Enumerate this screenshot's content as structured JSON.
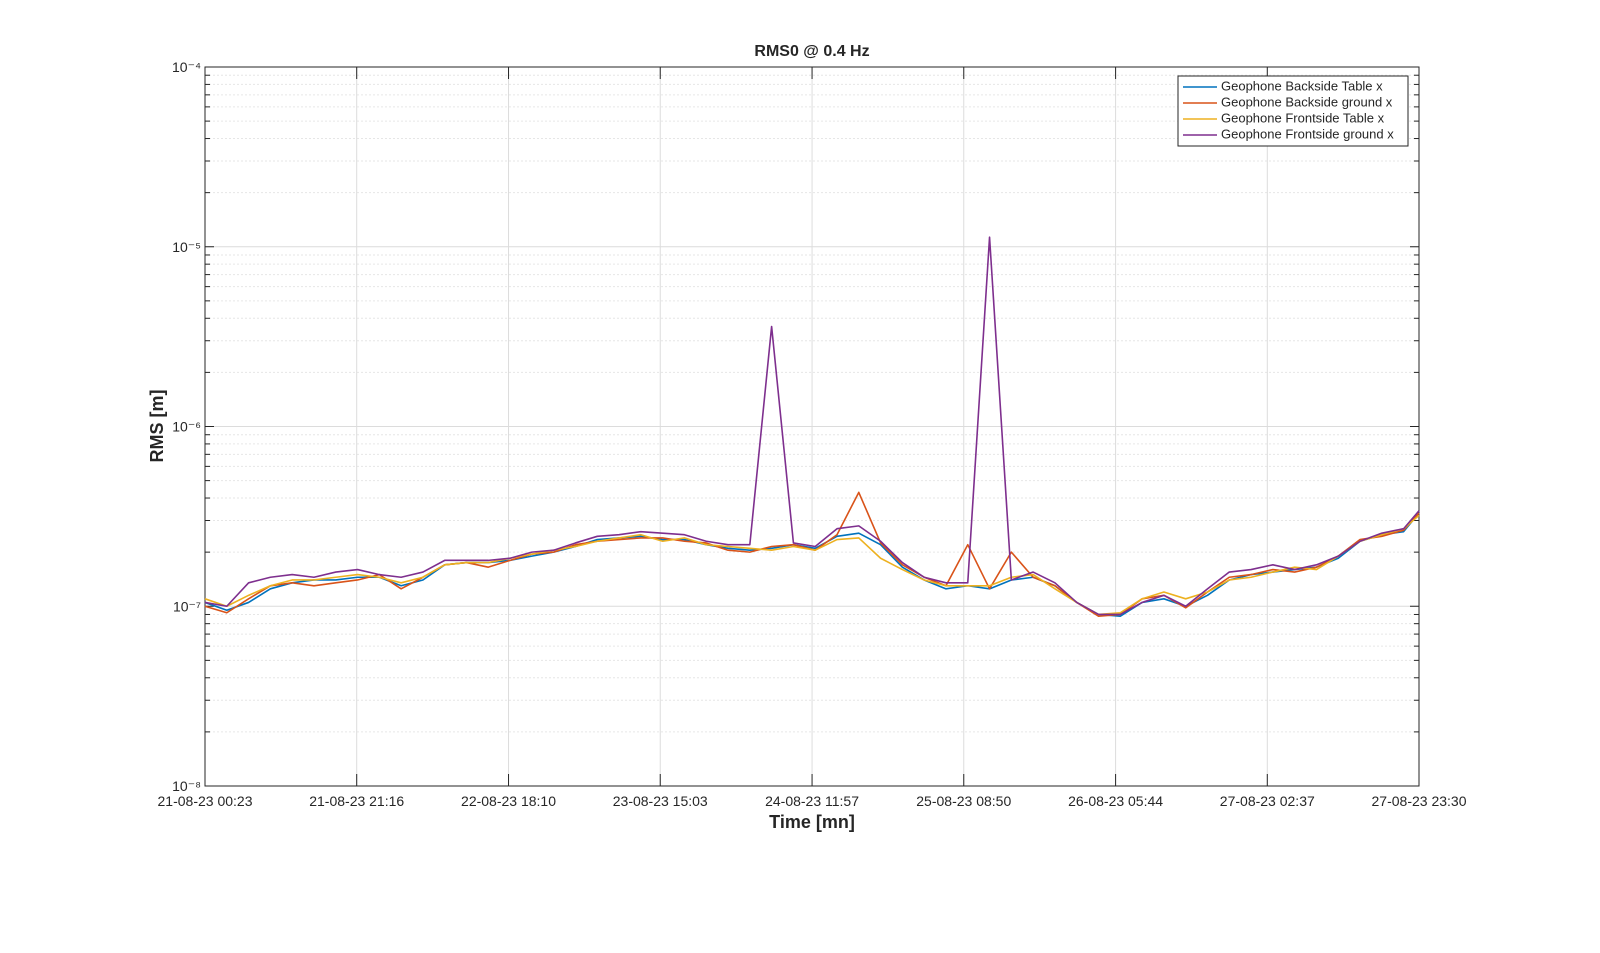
{
  "chart_data": {
    "type": "line",
    "title": "RMS0 @ 0.4 Hz",
    "xlabel": "Time [mn]",
    "ylabel": "RMS [m]",
    "log_y": true,
    "grid": true,
    "minor_grid": true,
    "legend_position": "upper-right",
    "xlim": [
      "2023-08-21T00:23",
      "2023-08-27T23:30"
    ],
    "xticks": [
      {
        "value": "2023-08-21T00:23",
        "label": "21-08-23 00:23"
      },
      {
        "value": "2023-08-21T21:16",
        "label": "21-08-23 21:16"
      },
      {
        "value": "2023-08-22T18:10",
        "label": "22-08-23 18:10"
      },
      {
        "value": "2023-08-23T15:03",
        "label": "23-08-23 15:03"
      },
      {
        "value": "2023-08-24T11:57",
        "label": "24-08-23 11:57"
      },
      {
        "value": "2023-08-25T08:50",
        "label": "25-08-23 08:50"
      },
      {
        "value": "2023-08-26T05:44",
        "label": "26-08-23 05:44"
      },
      {
        "value": "2023-08-27T02:37",
        "label": "27-08-23 02:37"
      },
      {
        "value": "2023-08-27T23:30",
        "label": "27-08-23 23:30"
      }
    ],
    "ylim": [
      1e-08,
      0.0001
    ],
    "yticks": [
      {
        "value": 1e-08,
        "label": "10⁻⁸"
      },
      {
        "value": 1e-07,
        "label": "10⁻⁷"
      },
      {
        "value": 1e-06,
        "label": "10⁻⁶"
      },
      {
        "value": 1e-05,
        "label": "10⁻⁵"
      },
      {
        "value": 0.0001,
        "label": "10⁻⁴"
      }
    ],
    "x": [
      "2023-08-21T00:23",
      "2023-08-21T03:23",
      "2023-08-21T06:23",
      "2023-08-21T09:23",
      "2023-08-21T12:23",
      "2023-08-21T15:23",
      "2023-08-21T18:23",
      "2023-08-21T21:23",
      "2023-08-22T00:23",
      "2023-08-22T03:23",
      "2023-08-22T06:23",
      "2023-08-22T09:23",
      "2023-08-22T12:23",
      "2023-08-22T15:23",
      "2023-08-22T18:23",
      "2023-08-22T21:23",
      "2023-08-23T00:23",
      "2023-08-23T03:23",
      "2023-08-23T06:23",
      "2023-08-23T09:23",
      "2023-08-23T12:23",
      "2023-08-23T15:23",
      "2023-08-23T18:23",
      "2023-08-23T21:23",
      "2023-08-24T00:23",
      "2023-08-24T03:23",
      "2023-08-24T06:23",
      "2023-08-24T09:23",
      "2023-08-24T12:23",
      "2023-08-24T15:23",
      "2023-08-24T18:23",
      "2023-08-24T21:23",
      "2023-08-25T00:23",
      "2023-08-25T03:23",
      "2023-08-25T06:23",
      "2023-08-25T09:23",
      "2023-08-25T12:23",
      "2023-08-25T15:23",
      "2023-08-25T18:23",
      "2023-08-25T21:23",
      "2023-08-26T00:23",
      "2023-08-26T03:23",
      "2023-08-26T06:23",
      "2023-08-26T09:23",
      "2023-08-26T12:23",
      "2023-08-26T15:23",
      "2023-08-26T18:23",
      "2023-08-26T21:23",
      "2023-08-27T00:23",
      "2023-08-27T03:23",
      "2023-08-27T06:23",
      "2023-08-27T09:23",
      "2023-08-27T12:23",
      "2023-08-27T15:23",
      "2023-08-27T18:23",
      "2023-08-27T21:23",
      "2023-08-27T23:30"
    ],
    "series": [
      {
        "name": "Geophone Backside Table x",
        "color": "#0072BD",
        "values": [
          1.05e-07,
          9.5e-08,
          1.05e-07,
          1.25e-07,
          1.35e-07,
          1.4e-07,
          1.4e-07,
          1.45e-07,
          1.45e-07,
          1.3e-07,
          1.4e-07,
          1.7e-07,
          1.75e-07,
          1.75e-07,
          1.8e-07,
          1.9e-07,
          2e-07,
          2.15e-07,
          2.35e-07,
          2.4e-07,
          2.45e-07,
          2.35e-07,
          2.35e-07,
          2.2e-07,
          2.1e-07,
          2.05e-07,
          2.1e-07,
          2.2e-07,
          2.1e-07,
          2.45e-07,
          2.55e-07,
          2.2e-07,
          1.65e-07,
          1.4e-07,
          1.25e-07,
          1.3e-07,
          1.25e-07,
          1.4e-07,
          1.45e-07,
          1.3e-07,
          1.05e-07,
          9e-08,
          8.8e-08,
          1.05e-07,
          1.1e-07,
          1e-07,
          1.15e-07,
          1.4e-07,
          1.5e-07,
          1.55e-07,
          1.6e-07,
          1.65e-07,
          1.85e-07,
          2.3e-07,
          2.5e-07,
          2.6e-07,
          3.3e-07
        ]
      },
      {
        "name": "Geophone Backside ground x",
        "color": "#D95319",
        "values": [
          1e-07,
          9.2e-08,
          1.1e-07,
          1.3e-07,
          1.35e-07,
          1.3e-07,
          1.35e-07,
          1.4e-07,
          1.5e-07,
          1.25e-07,
          1.45e-07,
          1.7e-07,
          1.75e-07,
          1.65e-07,
          1.8e-07,
          1.95e-07,
          2e-07,
          2.2e-07,
          2.3e-07,
          2.35e-07,
          2.4e-07,
          2.4e-07,
          2.3e-07,
          2.25e-07,
          2.05e-07,
          2e-07,
          2.15e-07,
          2.2e-07,
          2.05e-07,
          2.5e-07,
          4.3e-07,
          2.25e-07,
          1.7e-07,
          1.45e-07,
          1.3e-07,
          2.2e-07,
          1.25e-07,
          2e-07,
          1.45e-07,
          1.3e-07,
          1.05e-07,
          8.8e-08,
          9e-08,
          1.1e-07,
          1.15e-07,
          9.8e-08,
          1.2e-07,
          1.45e-07,
          1.5e-07,
          1.6e-07,
          1.55e-07,
          1.65e-07,
          1.9e-07,
          2.35e-07,
          2.45e-07,
          2.65e-07,
          3.3e-07
        ]
      },
      {
        "name": "Geophone Frontside Table x",
        "color": "#EDB120",
        "values": [
          1.1e-07,
          1e-07,
          1.15e-07,
          1.3e-07,
          1.4e-07,
          1.4e-07,
          1.45e-07,
          1.5e-07,
          1.45e-07,
          1.35e-07,
          1.45e-07,
          1.7e-07,
          1.75e-07,
          1.75e-07,
          1.85e-07,
          1.95e-07,
          2.05e-07,
          2.15e-07,
          2.3e-07,
          2.4e-07,
          2.5e-07,
          2.3e-07,
          2.4e-07,
          2.2e-07,
          2.15e-07,
          2.1e-07,
          2.05e-07,
          2.15e-07,
          2.05e-07,
          2.35e-07,
          2.4e-07,
          1.85e-07,
          1.6e-07,
          1.4e-07,
          1.3e-07,
          1.3e-07,
          1.3e-07,
          1.45e-07,
          1.5e-07,
          1.25e-07,
          1.05e-07,
          9e-08,
          9.2e-08,
          1.1e-07,
          1.2e-07,
          1.1e-07,
          1.2e-07,
          1.4e-07,
          1.45e-07,
          1.55e-07,
          1.65e-07,
          1.6e-07,
          1.9e-07,
          2.3e-07,
          2.5e-07,
          2.7e-07,
          3.2e-07
        ]
      },
      {
        "name": "Geophone Frontside ground x",
        "color": "#7E2F8E",
        "values": [
          1.05e-07,
          1e-07,
          1.35e-07,
          1.45e-07,
          1.5e-07,
          1.45e-07,
          1.55e-07,
          1.6e-07,
          1.5e-07,
          1.45e-07,
          1.55e-07,
          1.8e-07,
          1.8e-07,
          1.8e-07,
          1.85e-07,
          2e-07,
          2.05e-07,
          2.25e-07,
          2.45e-07,
          2.5e-07,
          2.6e-07,
          2.55e-07,
          2.5e-07,
          2.3e-07,
          2.2e-07,
          2.2e-07,
          3.6e-06,
          2.25e-07,
          2.15e-07,
          2.7e-07,
          2.8e-07,
          2.3e-07,
          1.75e-07,
          1.45e-07,
          1.35e-07,
          1.35e-07,
          1.13e-05,
          1.4e-07,
          1.55e-07,
          1.35e-07,
          1.05e-07,
          9e-08,
          9e-08,
          1.05e-07,
          1.15e-07,
          1e-07,
          1.25e-07,
          1.55e-07,
          1.6e-07,
          1.7e-07,
          1.6e-07,
          1.7e-07,
          1.9e-07,
          2.3e-07,
          2.55e-07,
          2.7e-07,
          3.4e-07
        ]
      }
    ]
  }
}
